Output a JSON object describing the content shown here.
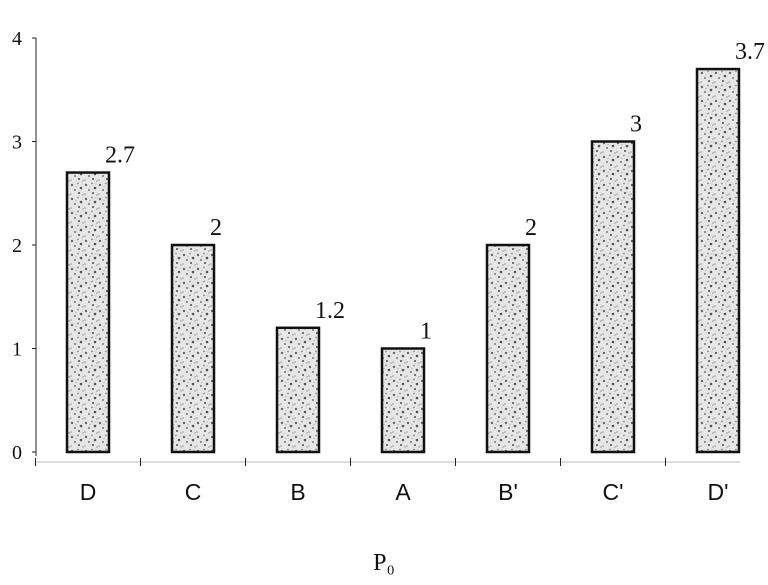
{
  "chart_data": {
    "type": "bar",
    "categories": [
      "D",
      "C",
      "B",
      "A",
      "B'",
      "C'",
      "D'"
    ],
    "values": [
      2.7,
      2,
      1.2,
      1,
      2,
      3,
      3.7
    ],
    "value_labels": [
      "2.7",
      "2",
      "1.2",
      "1",
      "2",
      "3",
      "3.7"
    ],
    "ylim": [
      0,
      4
    ],
    "yticks": [
      0,
      1,
      2,
      3,
      4
    ],
    "xlabel": "P₀",
    "ylabel": "",
    "title": "",
    "grid": false,
    "bar_fill": "textured-speckle",
    "colors": {
      "bar_edge": "#111111",
      "speckle": "#8a8a8a",
      "axis": "#222222"
    }
  }
}
